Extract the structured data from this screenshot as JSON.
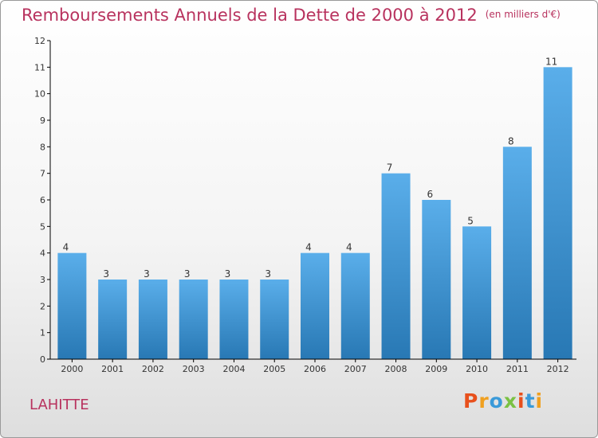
{
  "title": "Remboursements Annuels de la Dette de 2000 à 2012",
  "unit": "(en milliers d'€)",
  "commune": "LAHITTE",
  "logo_text": "Proxiti",
  "colors": {
    "title": "#b8325e",
    "bar_top": "#5aaeea",
    "bar_bottom": "#2878b4",
    "axis": "#000000",
    "grid": "#d0d0d0"
  },
  "chart_data": {
    "type": "bar",
    "title": "Remboursements Annuels de la Dette de 2000 à 2012",
    "xlabel": "",
    "ylabel": "",
    "categories": [
      "2000",
      "2001",
      "2002",
      "2003",
      "2004",
      "2005",
      "2006",
      "2007",
      "2008",
      "2009",
      "2010",
      "2011",
      "2012"
    ],
    "values": [
      4,
      3,
      3,
      3,
      3,
      3,
      4,
      4,
      7,
      6,
      5,
      8,
      11
    ],
    "ylim": [
      0,
      12
    ],
    "yticks": [
      0,
      1,
      2,
      3,
      4,
      5,
      6,
      7,
      8,
      9,
      10,
      11,
      12
    ],
    "grid": false,
    "data_labels": true
  }
}
